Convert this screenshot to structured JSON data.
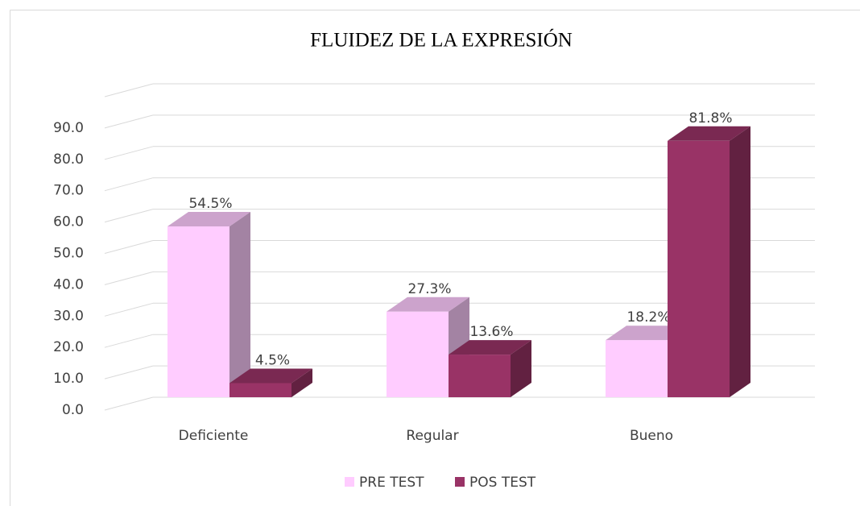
{
  "chart_data": {
    "type": "bar3d",
    "title": "FLUIDEZ DE LA EXPRESIÓN",
    "categories": [
      "Deficiente",
      "Regular",
      "Bueno"
    ],
    "series": [
      {
        "name": "PRE TEST",
        "color": "#ffccff",
        "values": [
          54.5,
          27.3,
          18.2
        ],
        "value_labels": [
          "54.5%",
          "27.3%",
          "18.2%"
        ]
      },
      {
        "name": "POS TEST",
        "color": "#993366",
        "values": [
          4.5,
          13.6,
          81.8
        ],
        "value_labels": [
          "4.5%",
          "13.6%",
          "81.8%"
        ]
      }
    ],
    "ylim": [
      0,
      100
    ],
    "yticks": [
      {
        "value": 0,
        "label": "0.0"
      },
      {
        "value": 10,
        "label": "10.0"
      },
      {
        "value": 20,
        "label": "20.0"
      },
      {
        "value": 30,
        "label": "30.0"
      },
      {
        "value": 40,
        "label": "40.0"
      },
      {
        "value": 50,
        "label": "50.0"
      },
      {
        "value": 60,
        "label": "60.0"
      },
      {
        "value": 70,
        "label": "70.0"
      },
      {
        "value": 80,
        "label": "80.0"
      },
      {
        "value": 90,
        "label": "90.0"
      }
    ],
    "grid": true,
    "legend": "bottom"
  }
}
